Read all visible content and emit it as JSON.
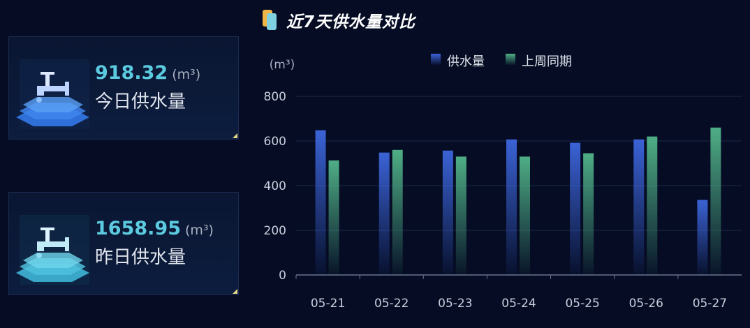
{
  "title": "近7天供水量对比",
  "cards": [
    {
      "value": "918.32",
      "unit": "(m³)",
      "label": "今日供水量",
      "value_color": "#5ccbe0",
      "icon": "faucet-icon"
    },
    {
      "value": "1658.95",
      "unit": "(m³)",
      "label": "昨日供水量",
      "value_color": "#5ccbe0",
      "icon": "faucet-icon"
    }
  ],
  "chart_data": {
    "type": "bar",
    "ylabel": "(m³)",
    "categories": [
      "05-21",
      "05-22",
      "05-23",
      "05-24",
      "05-25",
      "05-26",
      "05-27"
    ],
    "series": [
      {
        "name": "供水量",
        "color": "#3b63d6",
        "values": [
          648,
          548,
          557,
          607,
          592,
          607,
          336
        ]
      },
      {
        "name": "上周同期",
        "color": "#4fae86",
        "values": [
          513,
          560,
          530,
          530,
          545,
          620,
          660
        ]
      }
    ],
    "ylim": [
      0,
      800
    ],
    "yticks": [
      "0",
      "200",
      "400",
      "600",
      "800"
    ],
    "grid": true,
    "legend": "top-center"
  }
}
